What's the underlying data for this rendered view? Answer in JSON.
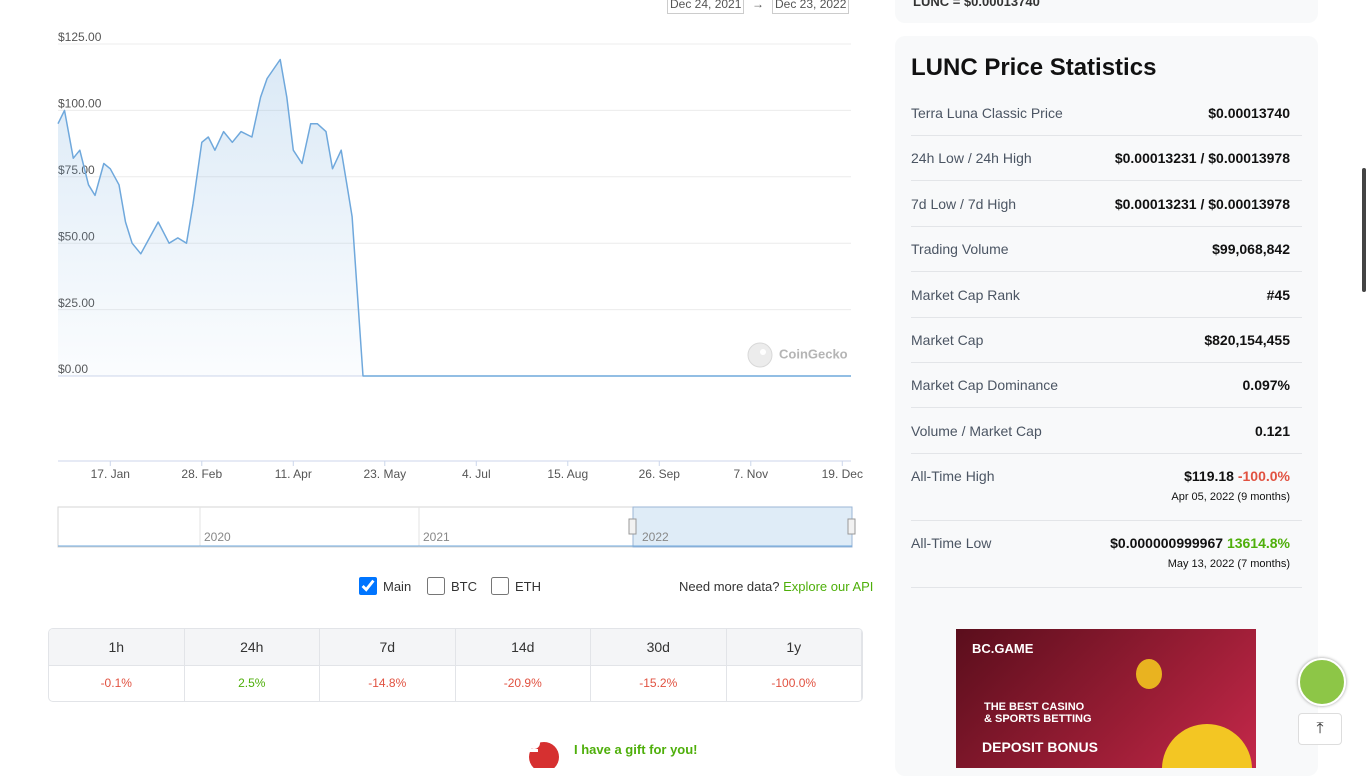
{
  "top_card": {
    "text": "LUNC = $0.00013740"
  },
  "date_range": {
    "from": "Dec 24, 2021",
    "arrow": "→",
    "to": "Dec 23, 2022"
  },
  "chart_data": {
    "type": "line",
    "x": [
      "2021-12-24",
      "2021-12-27",
      "2021-12-31",
      "2022-01-03",
      "2022-01-07",
      "2022-01-10",
      "2022-01-14",
      "2022-01-17",
      "2022-01-21",
      "2022-01-24",
      "2022-01-27",
      "2022-01-31",
      "2022-02-04",
      "2022-02-08",
      "2022-02-13",
      "2022-02-17",
      "2022-02-21",
      "2022-02-24",
      "2022-02-28",
      "2022-03-03",
      "2022-03-06",
      "2022-03-10",
      "2022-03-14",
      "2022-03-18",
      "2022-03-23",
      "2022-03-27",
      "2022-03-30",
      "2022-04-05",
      "2022-04-08",
      "2022-04-11",
      "2022-04-15",
      "2022-04-19",
      "2022-04-22",
      "2022-04-26",
      "2022-04-29",
      "2022-05-03",
      "2022-05-06",
      "2022-05-08",
      "2022-05-13",
      "2022-06-15",
      "2022-09-10",
      "2022-12-23"
    ],
    "values": [
      95,
      100,
      82,
      85,
      72,
      68,
      80,
      78,
      72,
      58,
      50,
      46,
      52,
      58,
      50,
      52,
      50,
      65,
      88,
      90,
      85,
      92,
      88,
      92,
      90,
      105,
      112,
      119.18,
      105,
      85,
      80,
      95,
      95,
      92,
      78,
      85,
      70,
      60,
      9.99967e-07,
      0.0001,
      0.0003,
      0.0001374
    ],
    "color": "#6fa8dc",
    "xlim": [
      "2021-12-24",
      "2022-12-23"
    ],
    "xticks": [
      {
        "value": "2022-01-17",
        "label": "17. Jan"
      },
      {
        "value": "2022-02-28",
        "label": "28. Feb"
      },
      {
        "value": "2022-04-11",
        "label": "11. Apr"
      },
      {
        "value": "2022-05-23",
        "label": "23. May"
      },
      {
        "value": "2022-07-04",
        "label": "4. Jul"
      },
      {
        "value": "2022-08-15",
        "label": "15. Aug"
      },
      {
        "value": "2022-09-26",
        "label": "26. Sep"
      },
      {
        "value": "2022-11-07",
        "label": "7. Nov"
      },
      {
        "value": "2022-12-19",
        "label": "19. Dec"
      }
    ],
    "ylim": [
      0,
      125
    ],
    "yticks": [
      {
        "value": 0,
        "label": "$0.00"
      },
      {
        "value": 25,
        "label": "$25.00"
      },
      {
        "value": 50,
        "label": "$50.00"
      },
      {
        "value": 75,
        "label": "$75.00"
      },
      {
        "value": 100,
        "label": "$100.00"
      },
      {
        "value": 125,
        "label": "$125.00"
      }
    ],
    "grid": true
  },
  "watermark": "CoinGecko",
  "navigator": {
    "labels": [
      "2020",
      "2021",
      "2022"
    ]
  },
  "toggles": [
    {
      "label": "Main",
      "checked": true
    },
    {
      "label": "BTC",
      "checked": false
    },
    {
      "label": "ETH",
      "checked": false
    }
  ],
  "api": {
    "prompt": "Need more data?",
    "link": "Explore our API"
  },
  "changes": {
    "headers": [
      "1h",
      "24h",
      "7d",
      "14d",
      "30d",
      "1y"
    ],
    "values": [
      "-0.1%",
      "2.5%",
      "-14.8%",
      "-20.9%",
      "-15.2%",
      "-100.0%"
    ]
  },
  "gift": "I have a gift for you!",
  "stats": {
    "title": "LUNC Price Statistics",
    "rows": [
      {
        "label": "Terra Luna Classic Price",
        "value": "$0.00013740"
      },
      {
        "label": "24h Low / 24h High",
        "value": "$0.00013231 / $0.00013978"
      },
      {
        "label": "7d Low / 7d High",
        "value": "$0.00013231 / $0.00013978"
      },
      {
        "label": "Trading Volume",
        "value": "$99,068,842"
      },
      {
        "label": "Market Cap Rank",
        "value": "#45"
      },
      {
        "label": "Market Cap",
        "value": "$820,154,455"
      },
      {
        "label": "Market Cap Dominance",
        "value": "0.097%"
      },
      {
        "label": "Volume / Market Cap",
        "value": "0.121"
      }
    ],
    "ath": {
      "label": "All-Time High",
      "value": "$119.18",
      "change": "-100.0%",
      "date": "Apr 05, 2022 (9 months)"
    },
    "atl": {
      "label": "All-Time Low",
      "value": "$0.000000999967",
      "change": "13614.8%",
      "date": "May 13, 2022 (7 months)"
    }
  },
  "ad": {
    "brand": "BC.GAME",
    "line1": "THE BEST CASINO",
    "line2": "& SPORTS BETTING",
    "line3": "DEPOSIT BONUS"
  }
}
